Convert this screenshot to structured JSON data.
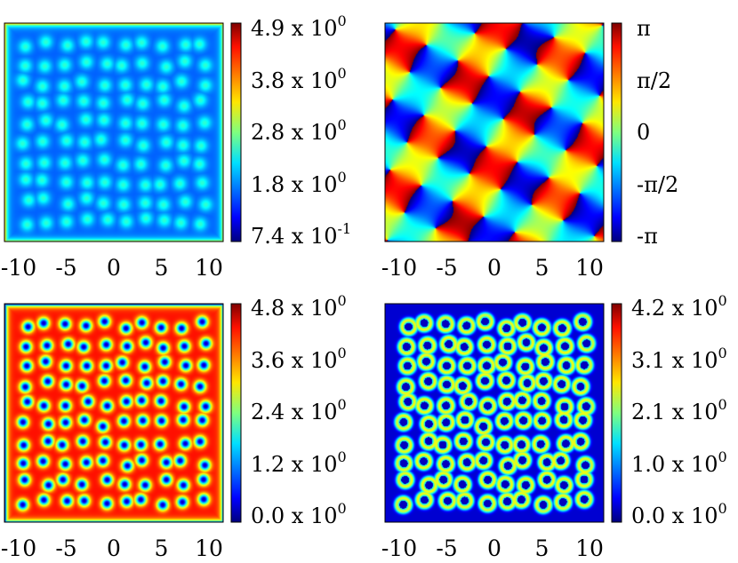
{
  "chart_data": [
    {
      "type": "heatmap",
      "panel": "top-left",
      "x_ticks": [
        "-10",
        "-5",
        "0",
        "5",
        "10"
      ],
      "x_tick_values": [
        -10,
        -5,
        0,
        5,
        10
      ],
      "xlim": [
        -11.5,
        11.5
      ],
      "colorbar": {
        "labels": [
          "4.9 x 10",
          "3.8 x 10",
          "2.8 x 10",
          "1.8 x 10",
          "7.4 x 10"
        ],
        "exponents": [
          "0",
          "0",
          "0",
          "0",
          "-1"
        ],
        "values": [
          4.9,
          3.8,
          2.8,
          1.8,
          0.74
        ],
        "range": [
          0.74,
          4.9
        ]
      },
      "pattern": {
        "rows": 10,
        "cols": 10,
        "border": "bright",
        "lattice": "light-spots",
        "background_level": 0.22,
        "spot_level": 0.42,
        "edge_level": 0.68
      }
    },
    {
      "type": "heatmap",
      "panel": "top-right",
      "x_ticks": [
        "-10",
        "-5",
        "0",
        "5",
        "10"
      ],
      "x_tick_values": [
        -10,
        -5,
        0,
        5,
        10
      ],
      "xlim": [
        -11.5,
        11.5
      ],
      "colorbar": {
        "labels": [
          "π",
          "π/2",
          "0",
          "-π/2",
          "-π"
        ],
        "exponents": [
          "",
          "",
          "",
          "",
          ""
        ],
        "values": [
          3.1416,
          1.5708,
          0,
          -1.5708,
          -3.1416
        ],
        "range": [
          -3.1416,
          3.1416
        ]
      },
      "pattern": {
        "kind": "phase",
        "waves": 8
      }
    },
    {
      "type": "heatmap",
      "panel": "bottom-left",
      "x_ticks": [
        "-10",
        "-5",
        "0",
        "5",
        "10"
      ],
      "x_tick_values": [
        -10,
        -5,
        0,
        5,
        10
      ],
      "xlim": [
        -11.5,
        11.5
      ],
      "colorbar": {
        "labels": [
          "4.8 x 10",
          "3.6 x 10",
          "2.4 x 10",
          "1.2 x 10",
          "0.0 x 10"
        ],
        "exponents": [
          "0",
          "0",
          "0",
          "0",
          "0"
        ],
        "values": [
          4.8,
          3.6,
          2.4,
          1.2,
          0.0
        ],
        "range": [
          0.0,
          4.8
        ]
      },
      "pattern": {
        "rows": 10,
        "cols": 10,
        "lattice": "dark-holes",
        "background_level": 0.86,
        "spot_level": 0.05
      }
    },
    {
      "type": "heatmap",
      "panel": "bottom-right",
      "x_ticks": [
        "-10",
        "-5",
        "0",
        "5",
        "10"
      ],
      "x_tick_values": [
        -10,
        -5,
        0,
        5,
        10
      ],
      "xlim": [
        -11.5,
        11.5
      ],
      "colorbar": {
        "labels": [
          "4.2 x 10",
          "3.1 x 10",
          "2.1 x 10",
          "1.0 x 10",
          "0.0 x 10"
        ],
        "exponents": [
          "0",
          "0",
          "0",
          "0",
          "0"
        ],
        "values": [
          4.2,
          3.1,
          2.1,
          1.0,
          0.0
        ],
        "range": [
          0.0,
          4.2
        ]
      },
      "pattern": {
        "rows": 10,
        "cols": 10,
        "lattice": "bright-ring-holes",
        "background_level": 0.08,
        "spot_level": 0.06,
        "ring_level": 0.62
      }
    }
  ]
}
